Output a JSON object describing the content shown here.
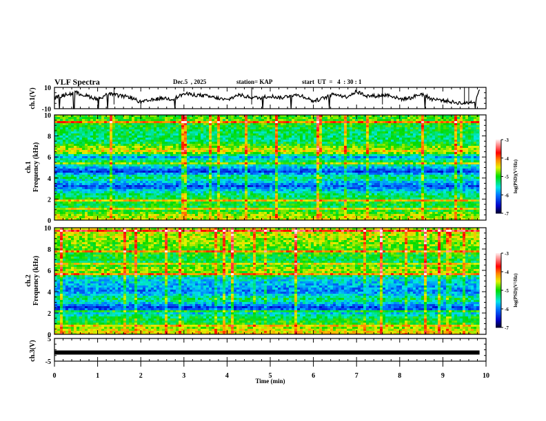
{
  "header": {
    "title": "VLF Spectra",
    "date": "Dec.5  , 2025",
    "station": "station= KAP",
    "start_ut": "start  UT  =   4  : 30 : 1"
  },
  "chart_data": [
    {
      "type": "line",
      "panel": "ch1-waveform",
      "ylabel": "ch.1(V)",
      "ylim": [
        -10,
        10
      ],
      "yticks": [
        "10",
        "-10"
      ],
      "xlim": [
        0,
        10
      ],
      "data_end_min": 9.85,
      "series_description": "noisy waveform trace",
      "x": [
        0,
        0.25,
        0.5,
        0.75,
        1,
        1.25,
        1.5,
        1.75,
        2,
        2.25,
        2.5,
        2.75,
        3,
        3.25,
        3.5,
        3.75,
        4,
        4.25,
        4.5,
        4.75,
        5,
        5.25,
        5.5,
        5.75,
        6,
        6.25,
        6.5,
        6.75,
        7,
        7.25,
        7.5,
        7.75,
        8,
        8.25,
        8.5,
        8.75,
        9,
        9.25,
        9.5,
        9.75,
        9.85
      ],
      "y": [
        0,
        3,
        5,
        2,
        -1,
        4,
        2,
        1,
        -4,
        -2,
        0,
        -1,
        4,
        3,
        2,
        0,
        -2,
        3,
        1,
        0,
        2,
        0,
        3,
        2,
        -3,
        0,
        4,
        1,
        6,
        2,
        2,
        3,
        -1,
        0,
        4,
        -1,
        -2,
        -4,
        -5,
        -3,
        9
      ]
    },
    {
      "type": "heatmap",
      "panel": "ch1-spectrogram",
      "ylabel": "ch.1\nFrequency  (kHz)",
      "ylim": [
        0,
        10
      ],
      "yticks": [
        "0",
        "2",
        "4",
        "6",
        "8",
        "10"
      ],
      "xlim": [
        0,
        10
      ],
      "colorbar": {
        "label": "log(PSD)(V²/Hz)",
        "range": [
          -7,
          -3
        ],
        "ticks": [
          "-3",
          "-4",
          "-5",
          "-6",
          "-7"
        ]
      },
      "band_levels_khz": [
        {
          "f": 9.5,
          "v": -4.9
        },
        {
          "f": 8.5,
          "v": -5.2
        },
        {
          "f": 7.5,
          "v": -5.3
        },
        {
          "f": 6.5,
          "v": -4.4
        },
        {
          "f": 6.0,
          "v": -5.9
        },
        {
          "f": 5.5,
          "v": -5.1
        },
        {
          "f": 4.6,
          "v": -6.3
        },
        {
          "f": 4.1,
          "v": -5.2
        },
        {
          "f": 3.2,
          "v": -6.2
        },
        {
          "f": 2.6,
          "v": -5.4
        },
        {
          "f": 1.8,
          "v": -5.0
        },
        {
          "f": 1.0,
          "v": -5.2
        },
        {
          "f": 0.4,
          "v": -4.6
        }
      ]
    },
    {
      "type": "heatmap",
      "panel": "ch2-spectrogram",
      "ylabel": "ch.2\nFrequency  (kHz)",
      "ylim": [
        0,
        10
      ],
      "yticks": [
        "0",
        "2",
        "4",
        "6",
        "8",
        "10"
      ],
      "xlim": [
        0,
        10
      ],
      "colorbar": {
        "label": "log(PSD)(V²/Hz)",
        "range": [
          -7,
          -3
        ],
        "ticks": [
          "-3",
          "-4",
          "-5",
          "-6",
          "-7"
        ]
      },
      "band_levels_khz": [
        {
          "f": 9.3,
          "v": -4.6
        },
        {
          "f": 8.0,
          "v": -4.9
        },
        {
          "f": 6.8,
          "v": -5.2
        },
        {
          "f": 6.0,
          "v": -4.6
        },
        {
          "f": 5.2,
          "v": -5.6
        },
        {
          "f": 4.0,
          "v": -6.0
        },
        {
          "f": 3.3,
          "v": -5.2
        },
        {
          "f": 2.5,
          "v": -6.3
        },
        {
          "f": 1.6,
          "v": -5.2
        },
        {
          "f": 0.9,
          "v": -5.0
        },
        {
          "f": 0.3,
          "v": -4.4
        }
      ]
    },
    {
      "type": "line",
      "panel": "ch3-waveform",
      "ylabel": "ch.3(V)",
      "ylim": [
        -5,
        5
      ],
      "yticks": [
        "5",
        "-5"
      ],
      "xlim": [
        0,
        10
      ],
      "data_end_min": 9.85,
      "level_v": -1.2,
      "xlabel": "Time  (min)",
      "xticks": [
        "0",
        "1",
        "2",
        "3",
        "4",
        "5",
        "6",
        "7",
        "8",
        "9",
        "10"
      ]
    }
  ]
}
